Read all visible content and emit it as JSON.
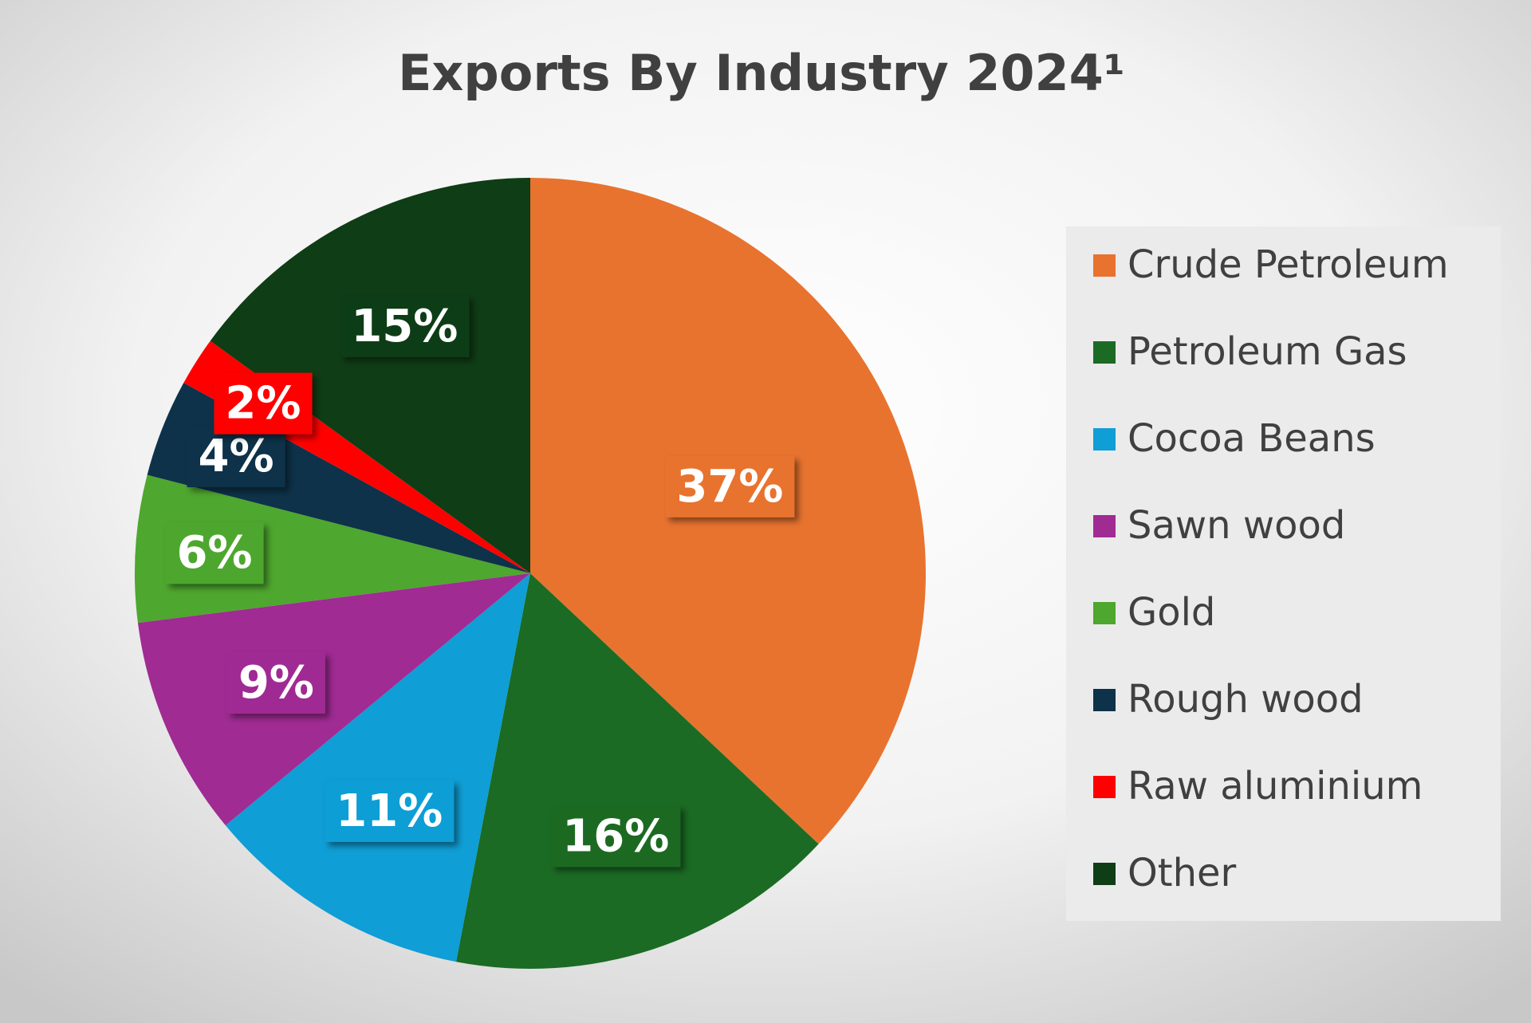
{
  "chart_data": {
    "type": "pie",
    "title": "Exports By Industry 2024¹",
    "categories": [
      "Crude Petroleum",
      "Petroleum Gas",
      "Cocoa Beans",
      "Sawn wood",
      "Gold",
      "Rough wood",
      "Raw aluminium",
      "Other"
    ],
    "values": [
      37,
      16,
      11,
      9,
      6,
      4,
      2,
      15
    ],
    "value_labels": [
      "37%",
      "16%",
      "11%",
      "9%",
      "6%",
      "4%",
      "2%",
      "15%"
    ],
    "colors": [
      "#E8732F",
      "#1B6B24",
      "#0F9ED5",
      "#A02B93",
      "#4EA72E",
      "#0E3249",
      "#FF0000",
      "#0F3D15"
    ],
    "legend": "right"
  }
}
